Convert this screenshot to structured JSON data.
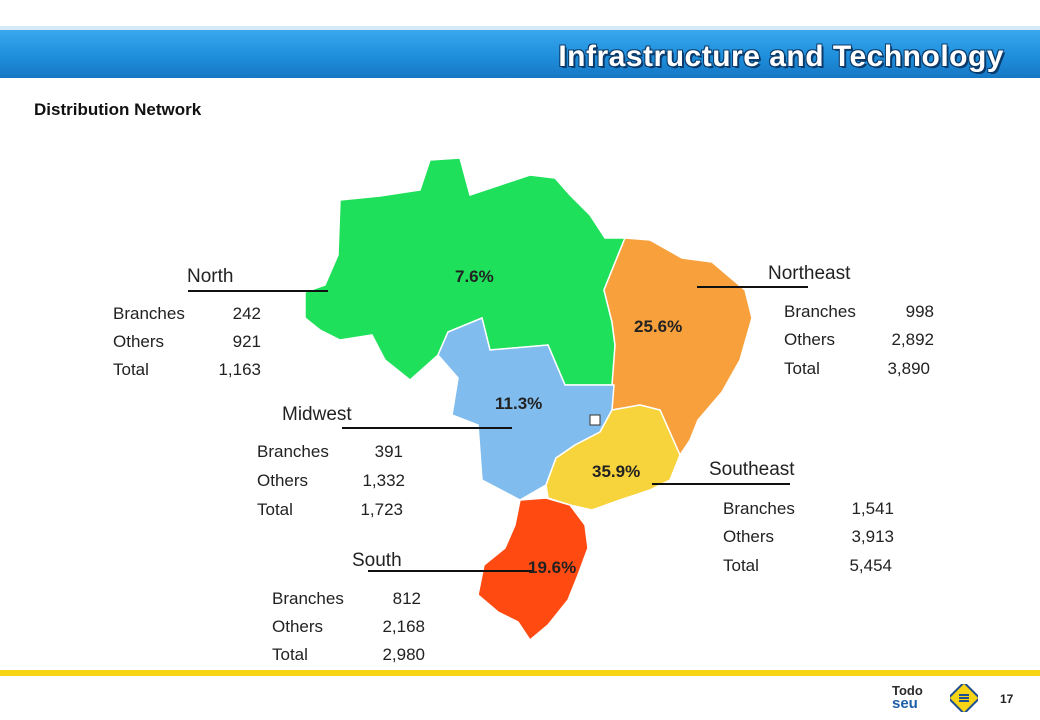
{
  "header": {
    "title": "Infrastructure and Technology"
  },
  "subtitle": "Distribution Network",
  "regions": {
    "north": {
      "title": "North",
      "percent": "7.6%",
      "branches_label": "Branches",
      "branches": "242",
      "others_label": "Others",
      "others": "921",
      "total_label": "Total",
      "total": "1,163",
      "color": "#1ee05a"
    },
    "northeast": {
      "title": "Northeast",
      "percent": "25.6%",
      "branches_label": "Branches",
      "branches": "998",
      "others_label": "Others",
      "others": "2,892",
      "total_label": "Total",
      "total": "3,890",
      "color": "#f7a03c"
    },
    "midwest": {
      "title": "Midwest",
      "percent": "11.3%",
      "branches_label": "Branches",
      "branches": "391",
      "others_label": "Others",
      "others": "1,332",
      "total_label": "Total",
      "total": "1,723",
      "color": "#80bcee"
    },
    "southeast": {
      "title": "Southeast",
      "percent": "35.9%",
      "branches_label": "Branches",
      "branches": "1,541",
      "others_label": "Others",
      "others": "3,913",
      "total_label": "Total",
      "total": "5,454",
      "color": "#f7d33c"
    },
    "south": {
      "title": "South",
      "percent": "19.6%",
      "branches_label": "Branches",
      "branches": "812",
      "others_label": "Others",
      "others": "2,168",
      "total_label": "Total",
      "total": "2,980",
      "color": "#ff4a12"
    }
  },
  "footer": {
    "brand_top": "Todo",
    "brand_bottom": "seu",
    "page_number": "17",
    "accent_color": "#f8d417",
    "logo_icon": "banco-do-brasil-logo-icon"
  }
}
